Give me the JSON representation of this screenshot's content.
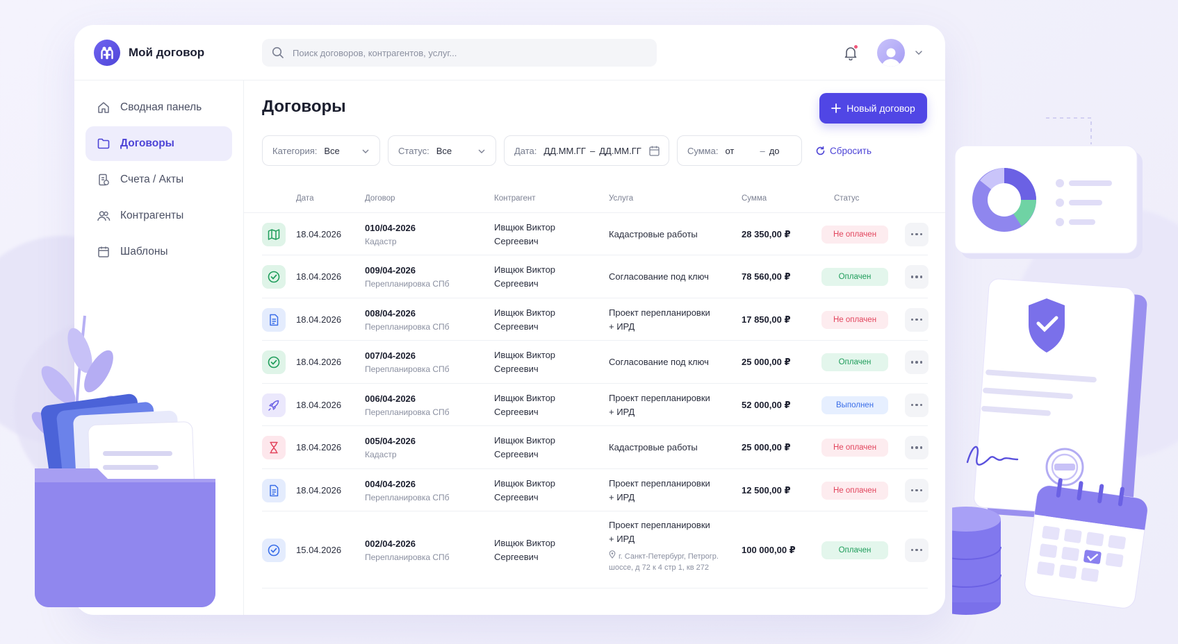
{
  "app": {
    "name": "Мой договор"
  },
  "search": {
    "placeholder": "Поиск договоров, контрагентов, услуг..."
  },
  "sidebar": {
    "items": [
      {
        "label": "Сводная панель",
        "icon": "home-icon",
        "active": false
      },
      {
        "label": "Договоры",
        "icon": "folder-icon",
        "active": true
      },
      {
        "label": "Счета / Акты",
        "icon": "invoice-icon",
        "active": false
      },
      {
        "label": "Контрагенты",
        "icon": "users-icon",
        "active": false
      },
      {
        "label": "Шаблоны",
        "icon": "calendar-icon",
        "active": false
      }
    ]
  },
  "main": {
    "title": "Договоры",
    "new_button": "Новый договор",
    "filters": {
      "category": {
        "label": "Категория:",
        "value": "Все"
      },
      "status": {
        "label": "Статус:",
        "value": "Все"
      },
      "date": {
        "label": "Дата:",
        "from": "ДД.ММ.ГГ",
        "sep": "–",
        "to": "ДД.ММ.ГГ"
      },
      "sum": {
        "label": "Сумма:",
        "from": "от",
        "sep": "–",
        "to": "до"
      },
      "reset": "Сбросить"
    },
    "columns": {
      "date": "Дата",
      "contract": "Договор",
      "counterparty": "Контрагент",
      "service": "Услуга",
      "sum": "Сумма",
      "status": "Статус"
    },
    "rows": [
      {
        "icon": "map-icon",
        "date": "18.04.2026",
        "number": "010/04-2026",
        "category": "Кадастр",
        "cp1": "Ивщюк Виктор",
        "cp2": "Сергеевич",
        "svc1": "Кадастровые работы",
        "svc2": "",
        "address1": "",
        "address2": "",
        "sum": "28 350,00 ₽",
        "status": "Не оплачен",
        "status_type": "unpaid"
      },
      {
        "icon": "check-circle-icon",
        "date": "18.04.2026",
        "number": "009/04-2026",
        "category": "Перепланировка СПб",
        "cp1": "Ивщюк Виктор",
        "cp2": "Сергеевич",
        "svc1": "Согласование под ключ",
        "svc2": "",
        "address1": "",
        "address2": "",
        "sum": "78 560,00 ₽",
        "status": "Оплачен",
        "status_type": "paid"
      },
      {
        "icon": "document-icon",
        "date": "18.04.2026",
        "number": "008/04-2026",
        "category": "Перепланировка СПб",
        "cp1": "Ивщюк Виктор",
        "cp2": "Сергеевич",
        "svc1": "Проект перепланировки",
        "svc2": "+ ИРД",
        "address1": "",
        "address2": "",
        "sum": "17 850,00 ₽",
        "status": "Не оплачен",
        "status_type": "unpaid"
      },
      {
        "icon": "check-circle-icon",
        "date": "18.04.2026",
        "number": "007/04-2026",
        "category": "Перепланировка СПб",
        "cp1": "Ивщюк Виктор",
        "cp2": "Сергеевич",
        "svc1": "Согласование под ключ",
        "svc2": "",
        "address1": "",
        "address2": "",
        "sum": "25 000,00 ₽",
        "status": "Оплачен",
        "status_type": "paid"
      },
      {
        "icon": "rocket-icon",
        "date": "18.04.2026",
        "number": "006/04-2026",
        "category": "Перепланировка СПб",
        "cp1": "Ивщюк Виктор",
        "cp2": "Сергеевич",
        "svc1": "Проект перепланировки",
        "svc2": "+ ИРД",
        "address1": "",
        "address2": "",
        "sum": "52 000,00 ₽",
        "status": "Выполнен",
        "status_type": "done"
      },
      {
        "icon": "hourglass-icon",
        "date": "18.04.2026",
        "number": "005/04-2026",
        "category": "Кадастр",
        "cp1": "Ивщюк Виктор",
        "cp2": "Сергеевич",
        "svc1": "Кадастровые работы",
        "svc2": "",
        "address1": "",
        "address2": "",
        "sum": "25 000,00 ₽",
        "status": "Не оплачен",
        "status_type": "unpaid"
      },
      {
        "icon": "document-icon",
        "date": "18.04.2026",
        "number": "004/04-2026",
        "category": "Перепланировка СПб",
        "cp1": "Ивщюк Виктор",
        "cp2": "Сергеевич",
        "svc1": "Проект перепланировки",
        "svc2": "+ ИРД",
        "address1": "",
        "address2": "",
        "sum": "12 500,00 ₽",
        "status": "Не оплачен",
        "status_type": "unpaid"
      },
      {
        "icon": "check-circle-blue-icon",
        "date": "15.04.2026",
        "number": "002/04-2026",
        "category": "Перепланировка СПб",
        "cp1": "Ивщюк Виктор",
        "cp2": "Сергеевич",
        "svc1": "Проект перепланировки",
        "svc2": "+ ИРД",
        "address1": "г. Санкт-Петербург, Петрогр.",
        "address2": "шоссе, д 72 к 4 стр 1, кв 272",
        "sum": "100 000,00 ₽",
        "status": "Оплачен",
        "status_type": "paid"
      }
    ]
  },
  "colors": {
    "accent": "#5046e5",
    "unpaid": "#e2445c",
    "paid": "#1f9d5b",
    "done": "#3a6ee8"
  }
}
